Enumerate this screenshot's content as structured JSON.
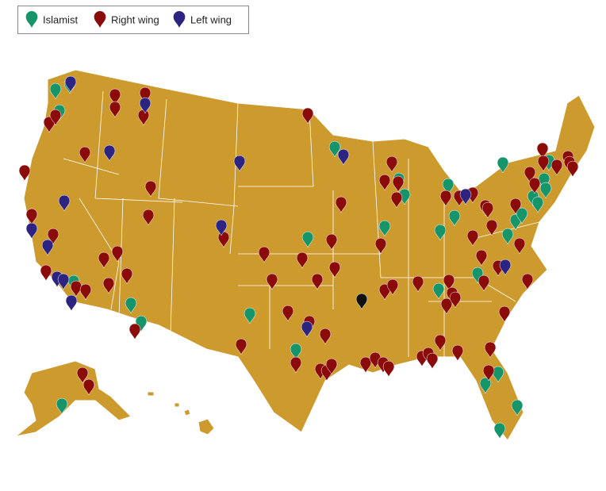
{
  "legend": [
    {
      "label": "Islamist",
      "color": "#16956b"
    },
    {
      "label": "Right wing",
      "color": "#8b0a0a"
    },
    {
      "label": "Left wing",
      "color": "#2d2380"
    }
  ]
}
